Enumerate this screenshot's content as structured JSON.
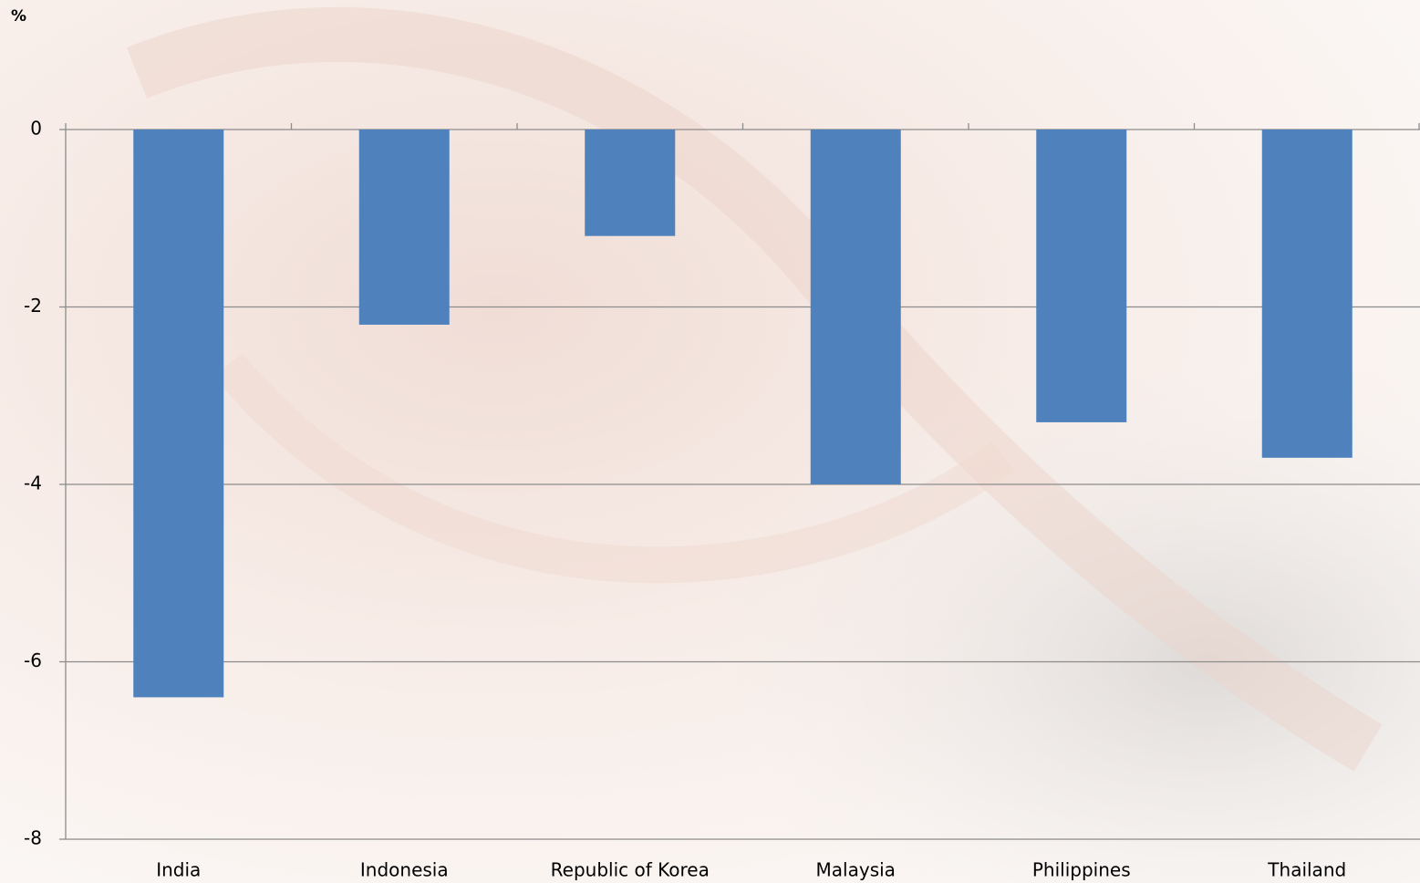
{
  "chart_data": {
    "type": "bar",
    "y_label": "%",
    "categories": [
      "India",
      "Indonesia",
      "Republic of Korea",
      "Malaysia",
      "Philippines",
      "Thailand"
    ],
    "values": [
      -6.4,
      -2.2,
      -1.2,
      -4.0,
      -3.3,
      -3.7
    ],
    "color": "#4f81bd",
    "ylim": [
      -8,
      0
    ],
    "yticks": [
      0,
      -2,
      -4,
      -6,
      -8
    ],
    "grid": true
  }
}
